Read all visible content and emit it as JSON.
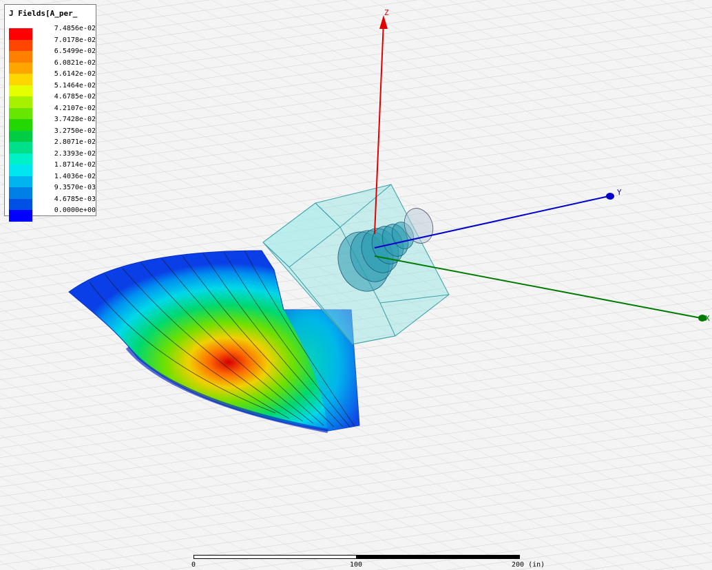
{
  "legend": {
    "title": "J Fields[A_per_",
    "values": [
      "7.4856e-02",
      "7.0178e-02",
      "6.5499e-02",
      "6.0821e-02",
      "5.6142e-02",
      "5.1464e-02",
      "4.6785e-02",
      "4.2107e-02",
      "3.7428e-02",
      "3.2750e-02",
      "2.8071e-02",
      "2.3393e-02",
      "1.8714e-02",
      "1.4036e-02",
      "9.3570e-03",
      "4.6785e-03",
      "0.0000e+00"
    ],
    "colors": [
      "#ff0000",
      "#ff4500",
      "#ff8000",
      "#ffa500",
      "#ffd700",
      "#e6ff00",
      "#a6f000",
      "#66e600",
      "#22d800",
      "#00cc44",
      "#00e08a",
      "#00f0c8",
      "#00e6f0",
      "#00b4f0",
      "#0080e6",
      "#0050e6",
      "#0000ff"
    ]
  },
  "axes": {
    "z_label": "Z",
    "y_label": "Y",
    "x_label": "X",
    "z_color": "#e00000",
    "y_color": "#0000cc",
    "x_color": "#007a00"
  },
  "scale": {
    "label_0": "0",
    "label_100": "100",
    "label_200": "200 (in)"
  }
}
